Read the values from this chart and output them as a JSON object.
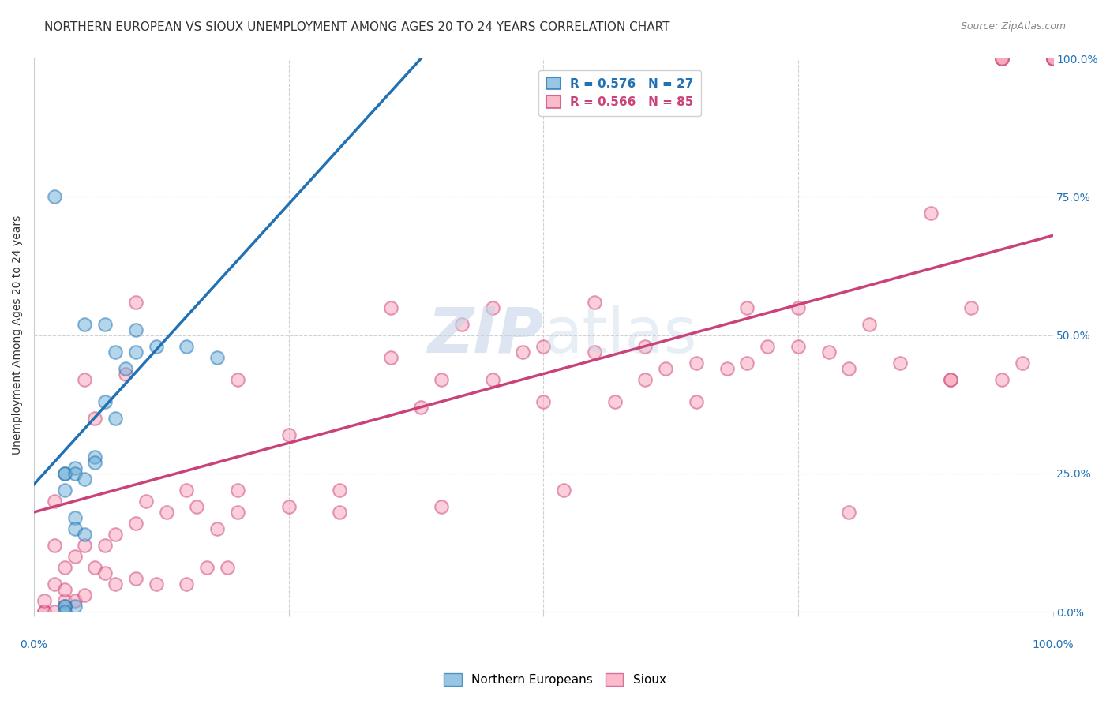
{
  "title": "NORTHERN EUROPEAN VS SIOUX UNEMPLOYMENT AMONG AGES 20 TO 24 YEARS CORRELATION CHART",
  "source": "Source: ZipAtlas.com",
  "ylabel": "Unemployment Among Ages 20 to 24 years",
  "right_yticks": [
    0.0,
    0.25,
    0.5,
    0.75,
    1.0
  ],
  "right_yticklabels": [
    "0.0%",
    "25.0%",
    "50.0%",
    "75.0%",
    "100.0%"
  ],
  "blue_R": 0.576,
  "blue_N": 27,
  "pink_R": 0.566,
  "pink_N": 85,
  "blue_color": "#6baed6",
  "pink_color": "#fa9fb5",
  "blue_line_color": "#2171b5",
  "pink_line_color": "#c9437a",
  "legend_blue_label": "Northern Europeans",
  "legend_pink_label": "Sioux",
  "background_color": "#ffffff",
  "grid_color": "#cccccc",
  "blue_scatter_x": [
    0.02,
    0.05,
    0.07,
    0.08,
    0.09,
    0.1,
    0.1,
    0.12,
    0.03,
    0.03,
    0.03,
    0.04,
    0.04,
    0.05,
    0.06,
    0.06,
    0.07,
    0.08,
    0.04,
    0.04,
    0.05,
    0.15,
    0.18,
    0.04,
    0.03,
    0.03,
    0.03
  ],
  "blue_scatter_y": [
    0.75,
    0.52,
    0.52,
    0.47,
    0.44,
    0.51,
    0.47,
    0.48,
    0.25,
    0.25,
    0.22,
    0.26,
    0.25,
    0.24,
    0.28,
    0.27,
    0.38,
    0.35,
    0.17,
    0.15,
    0.14,
    0.48,
    0.46,
    0.01,
    0.01,
    0.01,
    0.0
  ],
  "pink_scatter_x": [
    0.01,
    0.01,
    0.01,
    0.02,
    0.02,
    0.03,
    0.03,
    0.03,
    0.04,
    0.04,
    0.05,
    0.05,
    0.05,
    0.06,
    0.06,
    0.07,
    0.07,
    0.08,
    0.08,
    0.09,
    0.1,
    0.1,
    0.1,
    0.11,
    0.12,
    0.13,
    0.15,
    0.15,
    0.16,
    0.17,
    0.18,
    0.19,
    0.2,
    0.2,
    0.2,
    0.25,
    0.25,
    0.3,
    0.3,
    0.35,
    0.35,
    0.38,
    0.4,
    0.4,
    0.42,
    0.45,
    0.45,
    0.48,
    0.5,
    0.5,
    0.52,
    0.55,
    0.55,
    0.57,
    0.6,
    0.6,
    0.62,
    0.65,
    0.65,
    0.68,
    0.7,
    0.7,
    0.72,
    0.75,
    0.75,
    0.78,
    0.8,
    0.8,
    0.82,
    0.85,
    0.88,
    0.9,
    0.9,
    0.92,
    0.95,
    0.97,
    1.0,
    1.0,
    1.0,
    1.0,
    0.95,
    0.95,
    0.95,
    0.02,
    0.02
  ],
  "pink_scatter_y": [
    0.0,
    0.0,
    0.02,
    0.0,
    0.05,
    0.02,
    0.04,
    0.08,
    0.02,
    0.1,
    0.03,
    0.12,
    0.42,
    0.08,
    0.35,
    0.07,
    0.12,
    0.05,
    0.14,
    0.43,
    0.06,
    0.16,
    0.56,
    0.2,
    0.05,
    0.18,
    0.05,
    0.22,
    0.19,
    0.08,
    0.15,
    0.08,
    0.22,
    0.18,
    0.42,
    0.32,
    0.19,
    0.18,
    0.22,
    0.55,
    0.46,
    0.37,
    0.42,
    0.19,
    0.52,
    0.42,
    0.55,
    0.47,
    0.38,
    0.48,
    0.22,
    0.47,
    0.56,
    0.38,
    0.48,
    0.42,
    0.44,
    0.45,
    0.38,
    0.44,
    0.45,
    0.55,
    0.48,
    0.48,
    0.55,
    0.47,
    0.44,
    0.18,
    0.52,
    0.45,
    0.72,
    0.42,
    0.42,
    0.55,
    0.42,
    0.45,
    1.0,
    1.0,
    1.0,
    1.0,
    1.0,
    1.0,
    1.0,
    0.2,
    0.12
  ],
  "xlim": [
    0.0,
    1.0
  ],
  "ylim": [
    0.0,
    1.0
  ],
  "title_fontsize": 11,
  "source_fontsize": 9,
  "axis_label_fontsize": 10,
  "tick_fontsize": 10,
  "legend_fontsize": 11,
  "scatter_size": 144,
  "scatter_alpha": 0.5,
  "scatter_linewidth": 1.5,
  "blue_line_x0": 0.0,
  "blue_line_y0": 0.23,
  "blue_line_x1": 0.38,
  "blue_line_y1": 1.0,
  "pink_line_x0": 0.0,
  "pink_line_y0": 0.18,
  "pink_line_x1": 1.0,
  "pink_line_y1": 0.68
}
